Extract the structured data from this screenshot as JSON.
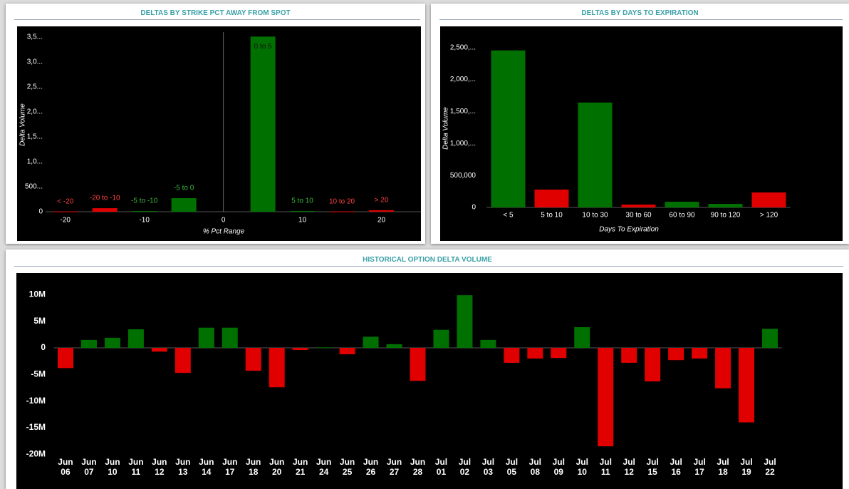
{
  "chart_data": [
    {
      "type": "bar",
      "title": "DELTAS BY STRIKE PCT AWAY FROM SPOT",
      "xlabel": "% Pct Range",
      "ylabel": "Delta Volume",
      "categories": [
        "< -20",
        "-20 to -10",
        "-5 to -10",
        "-5 to 0",
        "0 to 5",
        "5 to 10",
        "10 to 20",
        "> 20"
      ],
      "x": [
        -20,
        -15,
        -10,
        -5,
        5,
        10,
        15,
        20
      ],
      "values": [
        5000,
        70000,
        15000,
        271000,
        3510000,
        15000,
        5000,
        30000
      ],
      "colors": [
        "#e00000",
        "#e00000",
        "#007000",
        "#007000",
        "#007000",
        "#007000",
        "#e00000",
        "#e00000"
      ],
      "label_colors": [
        "#ff4040",
        "#ff4040",
        "#3cb83c",
        "#3cb83c",
        "#111111",
        "#3cb83c",
        "#ff4040",
        "#ff4040"
      ],
      "xlim": [
        -22.5,
        25
      ],
      "xticks": [
        -20,
        -10,
        0,
        10,
        20
      ],
      "ylim": [
        0,
        3600000
      ],
      "yticks": [
        0,
        {
          "value": 500000,
          "label": "500..."
        },
        {
          "value": 1000000,
          "label": "1,0..."
        },
        {
          "value": 1500000,
          "label": "1,5..."
        },
        {
          "value": 2000000,
          "label": "2,0..."
        },
        {
          "value": 2500000,
          "label": "2,5..."
        },
        {
          "value": 3000000,
          "label": "3,0..."
        },
        {
          "value": 3500000,
          "label": "3,5..."
        }
      ]
    },
    {
      "type": "bar",
      "title": "DELTAS BY DAYS TO EXPIRATION",
      "xlabel": "Days To Expiration",
      "ylabel": "Delta Volume",
      "categories": [
        "< 5",
        "5 to 10",
        "10 to 30",
        "30 to 60",
        "60 to 90",
        "90 to 120",
        "> 120"
      ],
      "values": [
        2455000,
        279000,
        1640000,
        45000,
        89000,
        56000,
        234000
      ],
      "colors": [
        "#007000",
        "#e00000",
        "#007000",
        "#e00000",
        "#007000",
        "#007000",
        "#e00000"
      ],
      "ylim": [
        0,
        2630000
      ],
      "yticks": [
        0,
        {
          "value": 500000,
          "label": "500,000"
        },
        {
          "value": 1000000,
          "label": "1,000,..."
        },
        {
          "value": 1500000,
          "label": "1,500,..."
        },
        {
          "value": 2000000,
          "label": "2,000,..."
        },
        {
          "value": 2500000,
          "label": "2,500,..."
        }
      ]
    },
    {
      "type": "bar",
      "title": "HISTORICAL OPTION DELTA VOLUME",
      "categories": [
        "Jun 06",
        "Jun 07",
        "Jun 10",
        "Jun 11",
        "Jun 12",
        "Jun 13",
        "Jun 14",
        "Jun 17",
        "Jun 18",
        "Jun 20",
        "Jun 21",
        "Jun 24",
        "Jun 25",
        "Jun 26",
        "Jun 27",
        "Jun 28",
        "Jul 01",
        "Jul 02",
        "Jul 03",
        "Jul 05",
        "Jul 08",
        "Jul 09",
        "Jul 10",
        "Jul 11",
        "Jul 12",
        "Jul 15",
        "Jul 16",
        "Jul 17",
        "Jul 18",
        "Jul 19",
        "Jul 22"
      ],
      "values": [
        -3800000,
        1500000,
        1900000,
        3500000,
        -700000,
        -4700000,
        3800000,
        3800000,
        -4300000,
        -7400000,
        -400000,
        100000,
        -1200000,
        2100000,
        700000,
        -6200000,
        3400000,
        9900000,
        1500000,
        -2800000,
        -2000000,
        -1900000,
        3900000,
        -18500000,
        -2800000,
        -6300000,
        -2300000,
        -2000000,
        -7600000,
        -14000000,
        3600000
      ],
      "color_positive": "#007000",
      "color_negative": "#e00000",
      "ylim": [
        -21700000,
        12200000
      ],
      "yticks": [
        {
          "value": -20000000,
          "label": "-20M"
        },
        {
          "value": -15000000,
          "label": "-15M"
        },
        {
          "value": -10000000,
          "label": "-10M"
        },
        {
          "value": -5000000,
          "label": "-5M"
        },
        0,
        {
          "value": 5000000,
          "label": "5M"
        },
        {
          "value": 10000000,
          "label": "10M"
        }
      ]
    }
  ]
}
